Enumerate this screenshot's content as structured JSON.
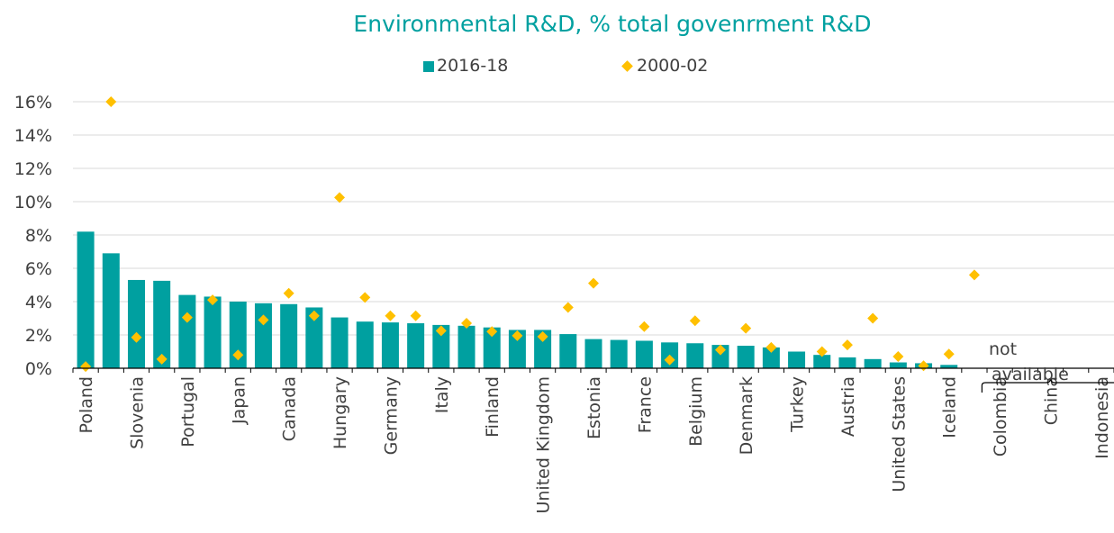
{
  "chart_data": {
    "type": "bar",
    "title": "Environmental R&D, % total govenrment R&D",
    "xlabel": "",
    "ylabel": "",
    "ylim": [
      0,
      16
    ],
    "y_ticks": [
      "0%",
      "2%",
      "4%",
      "6%",
      "8%",
      "10%",
      "12%",
      "14%",
      "16%"
    ],
    "legend_position": "top-center",
    "grid": true,
    "categories": [
      "Poland",
      "",
      "Slovenia",
      "",
      "Portugal",
      "",
      "Japan",
      "",
      "Canada",
      "",
      "Hungary",
      "",
      "Germany",
      "",
      "Italy",
      "",
      "Finland",
      "",
      "United Kingdom",
      "",
      "Estonia",
      "",
      "France",
      "",
      "Belgium",
      "",
      "Denmark",
      "",
      "Turkey",
      "",
      "Austria",
      "",
      "United States",
      "",
      "Iceland",
      "",
      "Colombia",
      "",
      "China",
      "",
      "Indonesia"
    ],
    "series": [
      {
        "name": "2016-18",
        "type": "bar",
        "color": "#00A0A0",
        "values": [
          8.2,
          6.9,
          5.3,
          5.25,
          4.4,
          4.3,
          4.0,
          3.9,
          3.85,
          3.65,
          3.05,
          2.8,
          2.75,
          2.7,
          2.6,
          2.55,
          2.45,
          2.3,
          2.3,
          2.05,
          1.75,
          1.7,
          1.65,
          1.55,
          1.5,
          1.4,
          1.35,
          1.25,
          1.0,
          0.8,
          0.65,
          0.55,
          0.35,
          0.3,
          0.2,
          null,
          null,
          null,
          null,
          null,
          null
        ]
      },
      {
        "name": "2000-02",
        "type": "scatter",
        "marker": "diamond",
        "color": "#FFC000",
        "values": [
          0.1,
          16.0,
          1.85,
          0.55,
          3.05,
          4.1,
          0.8,
          2.9,
          4.5,
          3.15,
          10.25,
          4.25,
          3.15,
          3.15,
          2.25,
          2.7,
          2.2,
          1.95,
          1.9,
          3.65,
          5.1,
          null,
          2.5,
          0.5,
          2.85,
          1.1,
          2.4,
          1.25,
          null,
          1.0,
          1.4,
          3.0,
          0.7,
          0.15,
          0.85,
          5.6,
          null,
          null,
          null,
          null,
          null
        ]
      }
    ],
    "annotations": [
      {
        "text_lines": [
          "not",
          "available"
        ],
        "applies_to": [
          "Colombia",
          "China",
          "Indonesia"
        ]
      }
    ]
  }
}
